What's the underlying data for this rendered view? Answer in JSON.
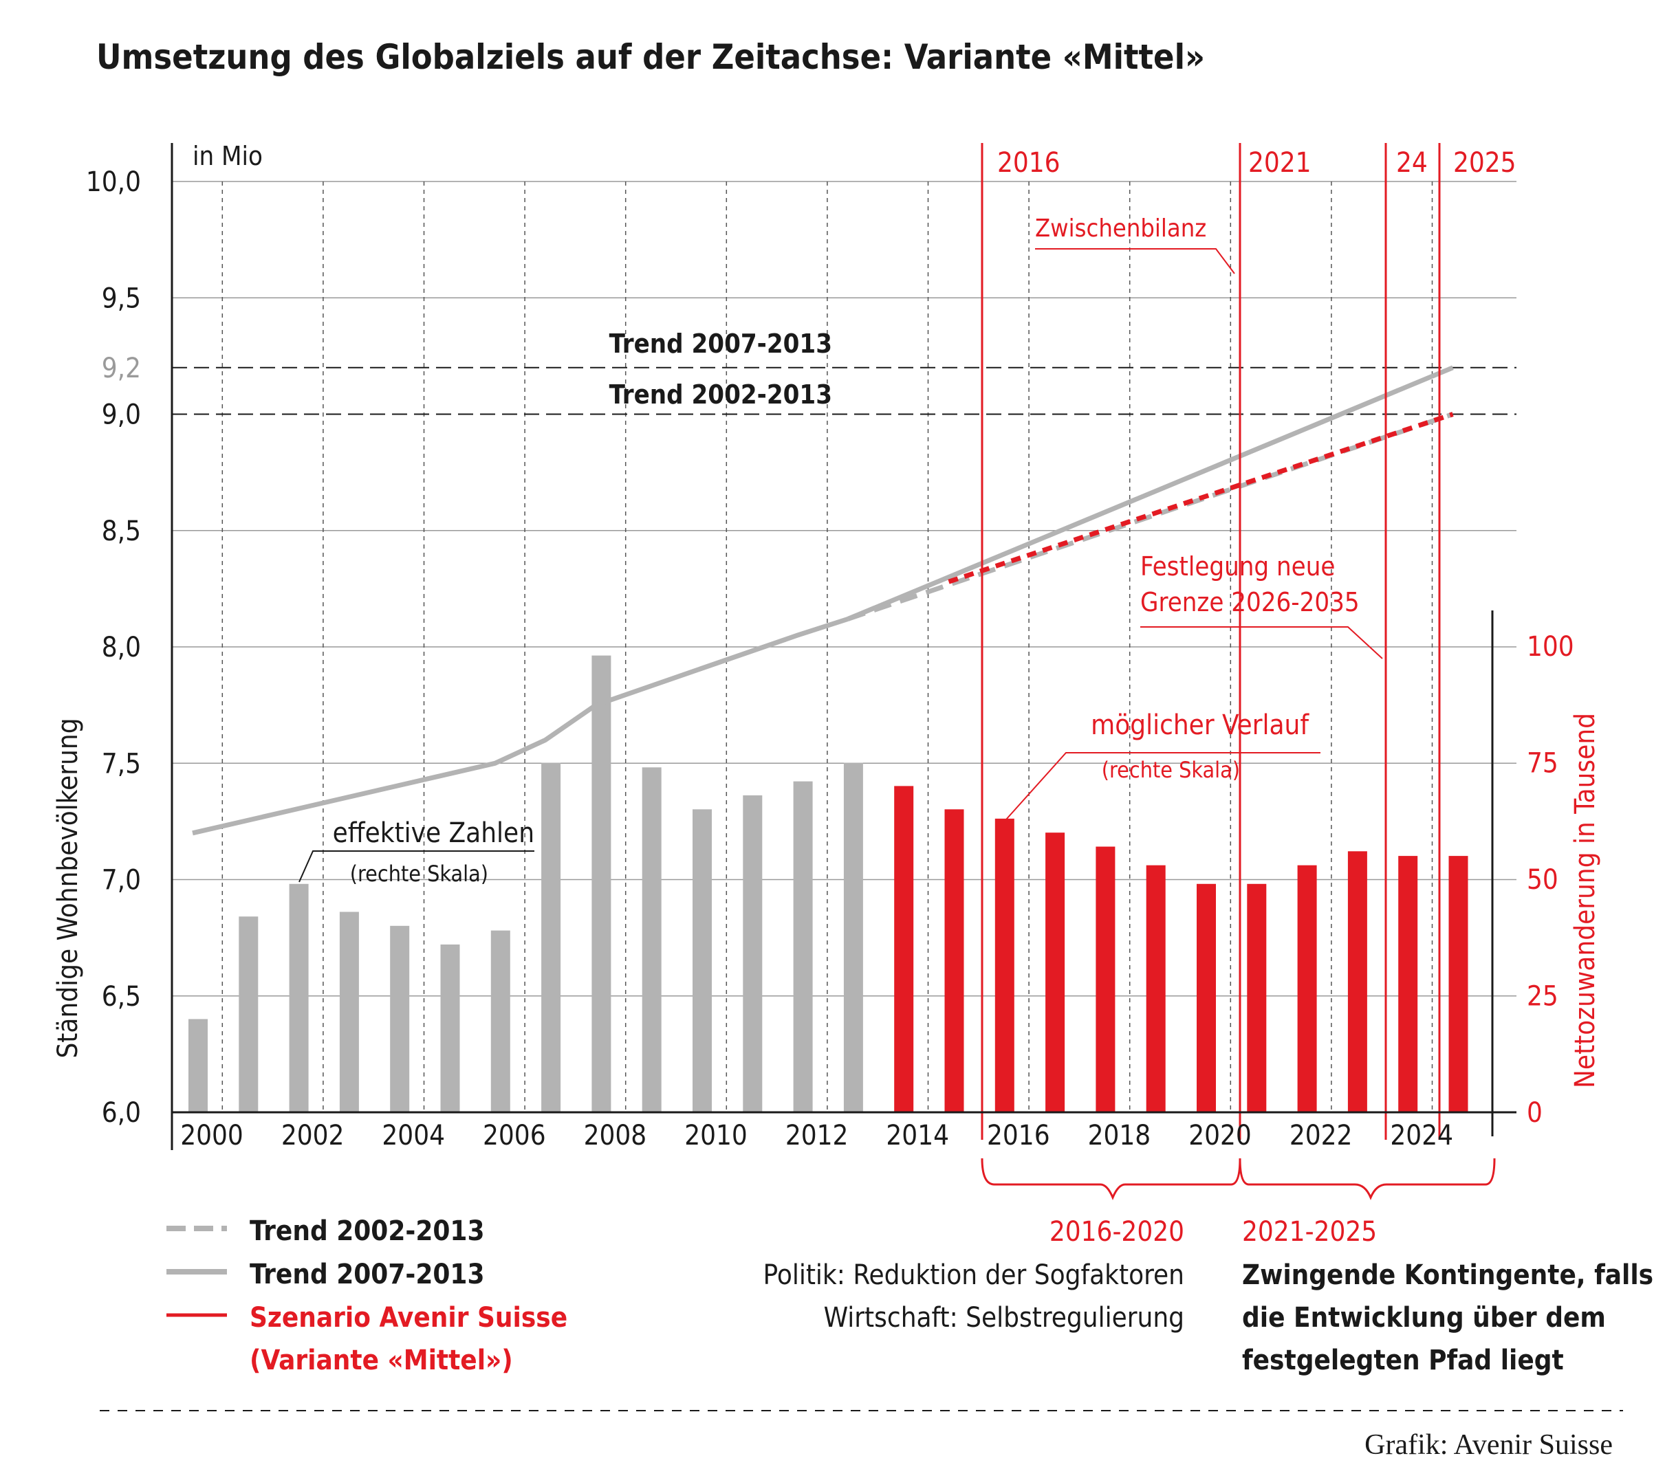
{
  "title": "Umsetzung des Globalziels auf der Zeitachse: Variante «Mittel»",
  "unit_label": "in Mio",
  "left_axis_label": "Ständige Wohnbevölkerung",
  "right_axis_label": "Nettozuwanderung in Tausend",
  "left_ticks": [
    "6,0",
    "6,5",
    "7,0",
    "7,5",
    "8,0",
    "8,5",
    "9,0",
    "9,2",
    "9,5",
    "10,0"
  ],
  "right_ticks": [
    "0",
    "25",
    "50",
    "75",
    "100"
  ],
  "x_ticks": [
    "2000",
    "2002",
    "2004",
    "2006",
    "2008",
    "2010",
    "2012",
    "2014",
    "2016",
    "2018",
    "2020",
    "2022",
    "2024"
  ],
  "milestones": [
    "2016",
    "2021",
    "24",
    "2025"
  ],
  "trend_labels": {
    "upper": "Trend 2007-2013",
    "lower": "Trend 2002-2013"
  },
  "annotations": {
    "zwischenbilanz": "Zwischenbilanz",
    "festlegung_1": "Festlegung neue",
    "festlegung_2": "Grenze 2026-2035",
    "moeglich_1": "möglicher Verlauf",
    "moeglich_2": "(rechte Skala)",
    "effektiv_1": "effektive Zahlen",
    "effektiv_2": "(rechte Skala)"
  },
  "periods": {
    "p1_label": "2016-2020",
    "p1_line1": "Politik: Reduktion der Sogfaktoren",
    "p1_line2": "Wirtschaft: Selbstregulierung",
    "p2_label": "2021-2025",
    "p2_line1": "Zwingende Kontingente, falls",
    "p2_line2": "die Entwicklung über dem",
    "p2_line3": "festgelegten Pfad liegt"
  },
  "legend": {
    "trend_2002": "Trend 2002-2013",
    "trend_2007": "Trend 2007-2013",
    "scenario_1": "Szenario Avenir Suisse",
    "scenario_2": "(Variante «Mittel»)"
  },
  "source": "Grafik: Avenir Suisse",
  "colors": {
    "red": "#e31b23",
    "gray": "#b3b3b3",
    "dark": "#1a1a1a"
  },
  "chart_data": {
    "type": "bar",
    "left_axis": {
      "label": "Ständige Wohnbevölkerung",
      "unit": "in Mio",
      "ylim": [
        6.0,
        10.0
      ]
    },
    "right_axis": {
      "label": "Nettozuwanderung in Tausend",
      "ylim": [
        0,
        100
      ]
    },
    "xlim": [
      2000,
      2025
    ],
    "bars_effective": {
      "years": [
        2000,
        2001,
        2002,
        2003,
        2004,
        2005,
        2006,
        2007,
        2008,
        2009,
        2010,
        2011,
        2012,
        2013
      ],
      "values": [
        20,
        42,
        49,
        43,
        40,
        36,
        39,
        75,
        98,
        74,
        65,
        68,
        71,
        75
      ]
    },
    "bars_scenario": {
      "years": [
        2014,
        2015,
        2016,
        2017,
        2018,
        2019,
        2020,
        2021,
        2022,
        2023,
        2024,
        2025
      ],
      "values": [
        70,
        65,
        63,
        60,
        57,
        53,
        49,
        49,
        53,
        56,
        55,
        55
      ]
    },
    "population_actual": {
      "years": [
        2000,
        2002,
        2004,
        2006,
        2007,
        2008,
        2010,
        2012,
        2013
      ],
      "values": [
        7.2,
        7.3,
        7.4,
        7.5,
        7.6,
        7.75,
        7.9,
        8.05,
        8.12
      ]
    },
    "trend_2007_2013": {
      "years": [
        2013,
        2025
      ],
      "values": [
        8.12,
        9.2
      ]
    },
    "trend_2002_2013": {
      "years": [
        2013,
        2025
      ],
      "values": [
        8.12,
        9.0
      ]
    },
    "scenario_population": {
      "years": [
        2015,
        2025
      ],
      "values": [
        8.28,
        9.0
      ]
    },
    "reference_lines": [
      9.2,
      9.0
    ]
  }
}
